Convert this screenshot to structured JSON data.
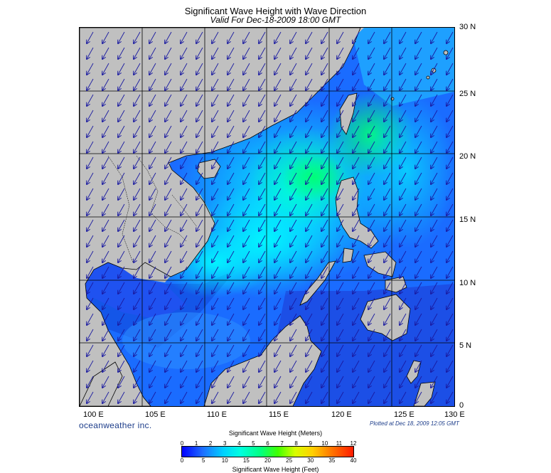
{
  "header": {
    "title": "Significant Wave Height with Wave Direction",
    "subtitle": "Valid For Dec-18-2009 18:00 GMT"
  },
  "map": {
    "lat_labels": [
      "30 N",
      "25 N",
      "20 N",
      "15 N",
      "10 N",
      "5 N",
      "0"
    ],
    "lon_labels": [
      "100 E",
      "105 E",
      "110 E",
      "115 E",
      "120 E",
      "125 E",
      "130 E"
    ],
    "land_color": "#c0c0c0",
    "grid_color": "#000000",
    "wave_direction": "arrows pointing toward the southwest",
    "region": "South China Sea, Philippine Sea, Gulf of Thailand"
  },
  "footer": {
    "brand": "oceanweather inc.",
    "plotted": "Plotted at Dec 18, 2009 12:05 GMT"
  },
  "colorbar": {
    "title_meters": "Significant Wave Height (Meters)",
    "title_feet": "Significant Wave Height (Feet)",
    "meter_ticks": [
      "0",
      "1",
      "2",
      "3",
      "4",
      "5",
      "6",
      "7",
      "8",
      "9",
      "10",
      "11",
      "12"
    ],
    "feet_ticks": [
      "0",
      "5",
      "10",
      "15",
      "20",
      "25",
      "30",
      "35",
      "40"
    ],
    "colors": [
      "#0000ff",
      "#1e6dff",
      "#00d0ff",
      "#00ffe0",
      "#00ff80",
      "#40ff00",
      "#d8ff00",
      "#ffd000",
      "#ff8000",
      "#ff1a00"
    ]
  }
}
